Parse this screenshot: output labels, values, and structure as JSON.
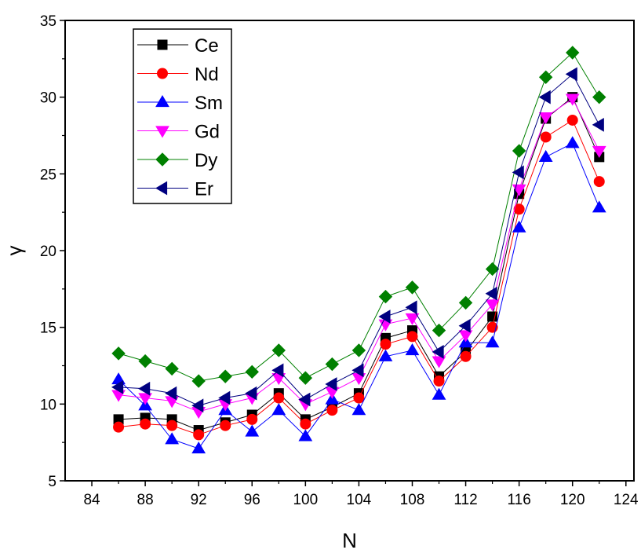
{
  "chart_data": {
    "type": "line",
    "xlabel": "N",
    "ylabel": "γ",
    "xlim": [
      82,
      124.6
    ],
    "ylim": [
      5,
      35
    ],
    "xticks": [
      84,
      88,
      92,
      96,
      100,
      104,
      108,
      112,
      116,
      120,
      124
    ],
    "yticks": [
      5,
      10,
      15,
      20,
      25,
      30,
      35
    ],
    "legend_position": "top-left",
    "x": [
      86,
      88,
      90,
      92,
      94,
      96,
      98,
      100,
      102,
      104,
      106,
      108,
      110,
      112,
      114,
      116,
      118,
      120,
      122
    ],
    "series": [
      {
        "name": "Ce",
        "color": "#000000",
        "marker": "square",
        "values": [
          9.0,
          9.1,
          9.0,
          8.3,
          8.8,
          9.3,
          10.7,
          9.0,
          9.8,
          10.7,
          14.3,
          14.8,
          11.8,
          13.4,
          15.7,
          23.7,
          28.6,
          30.0,
          26.1
        ]
      },
      {
        "name": "Nd",
        "color": "#ff0000",
        "marker": "circle",
        "values": [
          8.5,
          8.7,
          8.6,
          8.0,
          8.6,
          9.0,
          10.4,
          8.7,
          9.6,
          10.4,
          13.9,
          14.4,
          11.5,
          13.1,
          15.0,
          22.7,
          27.4,
          28.5,
          24.5
        ]
      },
      {
        "name": "Sm",
        "color": "#0000ff",
        "marker": "triangle-up",
        "values": [
          11.6,
          9.9,
          7.7,
          7.1,
          9.6,
          8.2,
          9.6,
          7.9,
          10.3,
          9.6,
          13.1,
          13.5,
          10.6,
          14.0,
          14.0,
          21.5,
          26.1,
          27.0,
          22.8
        ]
      },
      {
        "name": "Gd",
        "color": "#ff00ff",
        "marker": "triangle-down",
        "values": [
          10.6,
          10.4,
          10.2,
          9.5,
          10.0,
          10.4,
          11.7,
          10.0,
          10.8,
          11.7,
          15.2,
          15.6,
          12.8,
          14.5,
          16.5,
          24.0,
          28.7,
          29.9,
          26.5
        ]
      },
      {
        "name": "Dy",
        "color": "#008000",
        "marker": "diamond",
        "values": [
          13.3,
          12.8,
          12.3,
          11.5,
          11.8,
          12.1,
          13.5,
          11.7,
          12.6,
          13.5,
          17.0,
          17.6,
          14.8,
          16.6,
          18.8,
          26.5,
          31.3,
          32.9,
          30.0
        ]
      },
      {
        "name": "Er",
        "color": "#000080",
        "marker": "triangle-left",
        "values": [
          11.1,
          11.0,
          10.7,
          9.9,
          10.4,
          10.7,
          12.2,
          10.3,
          11.3,
          12.2,
          15.7,
          16.3,
          13.4,
          15.1,
          17.2,
          25.1,
          30.0,
          31.5,
          28.2
        ]
      }
    ]
  }
}
